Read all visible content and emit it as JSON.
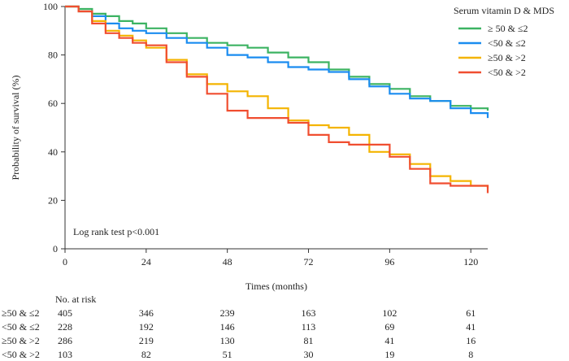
{
  "chart_data": {
    "type": "line",
    "title": "",
    "xlabel": "Times (months)",
    "ylabel": "Probability of survival (%)",
    "xlim": [
      0,
      125
    ],
    "ylim": [
      0,
      100
    ],
    "xticks": [
      0,
      24,
      48,
      72,
      96,
      120
    ],
    "yticks": [
      0,
      20,
      40,
      60,
      80,
      100
    ],
    "grid": false,
    "legend": {
      "title": "Serum vitamin D & MDS",
      "position": "top-right"
    },
    "annotation": "Log rank test p<0.001",
    "series": [
      {
        "name": "≥ 50 & ≤2",
        "color": "#3cb362",
        "x": [
          0,
          4,
          8,
          12,
          16,
          20,
          24,
          30,
          36,
          42,
          48,
          54,
          60,
          66,
          72,
          78,
          84,
          90,
          96,
          102,
          108,
          114,
          120,
          125
        ],
        "y": [
          100,
          99,
          97,
          96,
          94,
          93,
          91,
          89,
          87,
          85,
          84,
          83,
          81,
          79,
          77,
          74,
          71,
          68,
          66,
          63,
          61,
          59,
          58,
          57
        ]
      },
      {
        "name": "<50 & ≤2",
        "color": "#1a8cf0",
        "x": [
          0,
          4,
          8,
          12,
          16,
          20,
          24,
          30,
          36,
          42,
          48,
          54,
          60,
          66,
          72,
          78,
          84,
          90,
          96,
          102,
          108,
          114,
          120,
          125
        ],
        "y": [
          100,
          98,
          96,
          93,
          91,
          90,
          89,
          87,
          85,
          83,
          80,
          79,
          77,
          75,
          74,
          73,
          70,
          67,
          64,
          62,
          61,
          58,
          56,
          54
        ]
      },
      {
        "name": "≥50 & >2",
        "color": "#f4b400",
        "x": [
          0,
          4,
          8,
          12,
          16,
          20,
          24,
          30,
          36,
          42,
          48,
          54,
          60,
          66,
          72,
          78,
          84,
          90,
          96,
          102,
          108,
          114,
          120,
          125
        ],
        "y": [
          100,
          98,
          94,
          90,
          88,
          86,
          83,
          78,
          72,
          68,
          65,
          63,
          58,
          53,
          51,
          50,
          47,
          40,
          39,
          35,
          30,
          28,
          26,
          25
        ]
      },
      {
        "name": "<50 & >2",
        "color": "#f04e30",
        "x": [
          0,
          4,
          8,
          12,
          16,
          20,
          24,
          30,
          36,
          42,
          48,
          54,
          60,
          66,
          72,
          78,
          84,
          90,
          96,
          102,
          108,
          114,
          120,
          125
        ],
        "y": [
          100,
          98,
          93,
          89,
          87,
          85,
          84,
          77,
          71,
          64,
          57,
          54,
          54,
          52,
          47,
          44,
          43,
          43,
          38,
          33,
          27,
          26,
          26,
          23
        ]
      }
    ],
    "risk_table": {
      "title": "No. at risk",
      "times": [
        0,
        24,
        48,
        72,
        96,
        120
      ],
      "rows": [
        {
          "label": "≥50 & ≤2",
          "counts": [
            405,
            346,
            239,
            163,
            102,
            61
          ]
        },
        {
          "label": "<50 & ≤2",
          "counts": [
            228,
            192,
            146,
            113,
            69,
            41
          ]
        },
        {
          "label": "≥50 & >2",
          "counts": [
            286,
            219,
            130,
            81,
            41,
            16
          ]
        },
        {
          "label": "<50 & >2",
          "counts": [
            103,
            82,
            51,
            30,
            19,
            8
          ]
        }
      ]
    }
  }
}
